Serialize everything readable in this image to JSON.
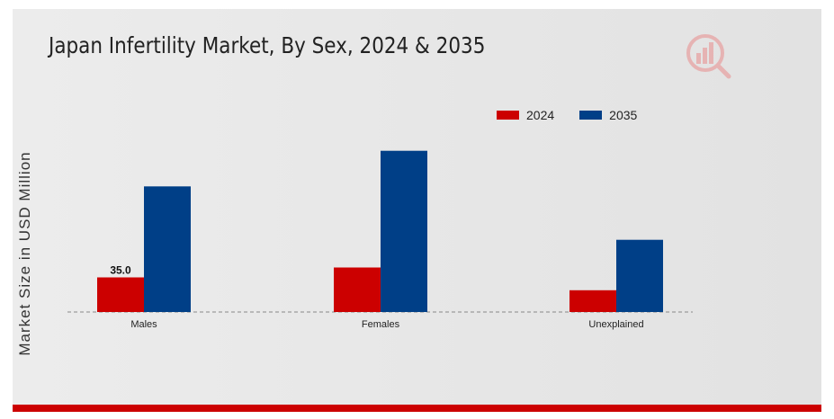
{
  "chart_data": {
    "type": "bar",
    "title": "Japan Infertility Market, By Sex, 2024 & 2035",
    "ylabel": "Market Size in USD Million",
    "xlabel": "",
    "categories": [
      "Males",
      "Females",
      "Unexplained"
    ],
    "series": [
      {
        "name": "2024",
        "color": "#cc0000",
        "values": [
          35.0,
          45.0,
          22.0
        ]
      },
      {
        "name": "2035",
        "color": "#003f87",
        "values": [
          127.0,
          163.0,
          73.0
        ]
      }
    ],
    "data_labels": [
      {
        "series": 0,
        "category": 0,
        "text": "35.0"
      }
    ],
    "ylim": [
      0,
      200
    ],
    "grid": false,
    "legend_position": "top-right"
  },
  "logo": {
    "name": "market-research-logo-icon"
  }
}
